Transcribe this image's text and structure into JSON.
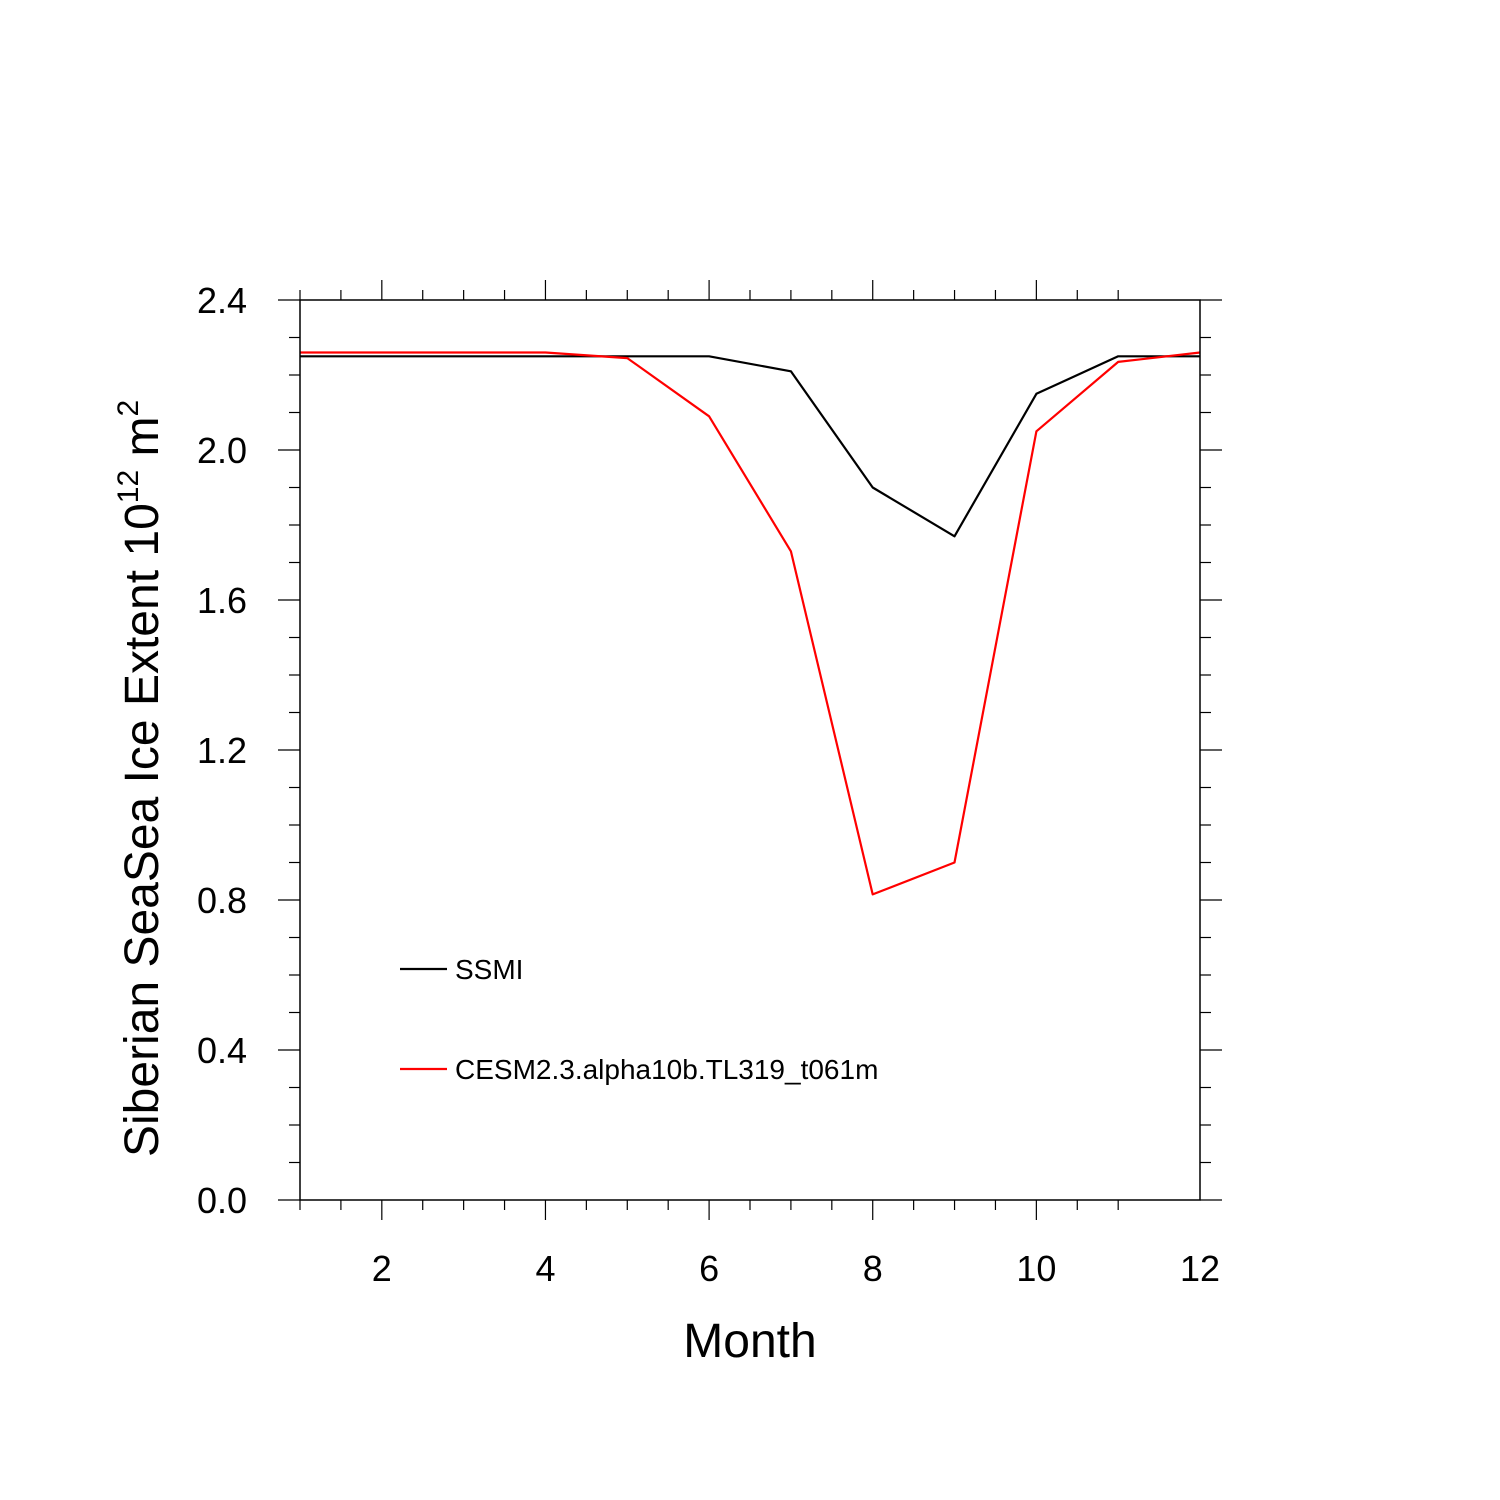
{
  "chart_data": {
    "type": "line",
    "title": "",
    "xlabel": "Month",
    "ylabel": {
      "text": "Siberian SeaSea Ice Extent 10",
      "exponent": "12",
      "unit": " m",
      "unit_exponent": "2"
    },
    "xlim": [
      1,
      12
    ],
    "ylim": [
      0,
      2.4
    ],
    "x_ticks": [
      2,
      4,
      6,
      8,
      10,
      12
    ],
    "y_ticks": [
      "0.0",
      "0.4",
      "0.8",
      "1.2",
      "1.6",
      "2.0",
      "2.4"
    ],
    "x": [
      1,
      2,
      3,
      4,
      5,
      6,
      7,
      8,
      9,
      10,
      11,
      12
    ],
    "series": [
      {
        "name": "SSMI",
        "color": "#000000",
        "values": [
          2.25,
          2.25,
          2.25,
          2.25,
          2.25,
          2.25,
          2.21,
          1.9,
          1.77,
          2.15,
          2.25,
          2.25
        ]
      },
      {
        "name": "CESM2.3.alpha10b.TL319_t061m",
        "color": "#ff0000",
        "values": [
          2.26,
          2.26,
          2.26,
          2.26,
          2.245,
          2.09,
          1.73,
          0.815,
          0.9,
          2.05,
          2.235,
          2.26
        ]
      }
    ],
    "grid": false,
    "legend_position": "lower-left"
  }
}
